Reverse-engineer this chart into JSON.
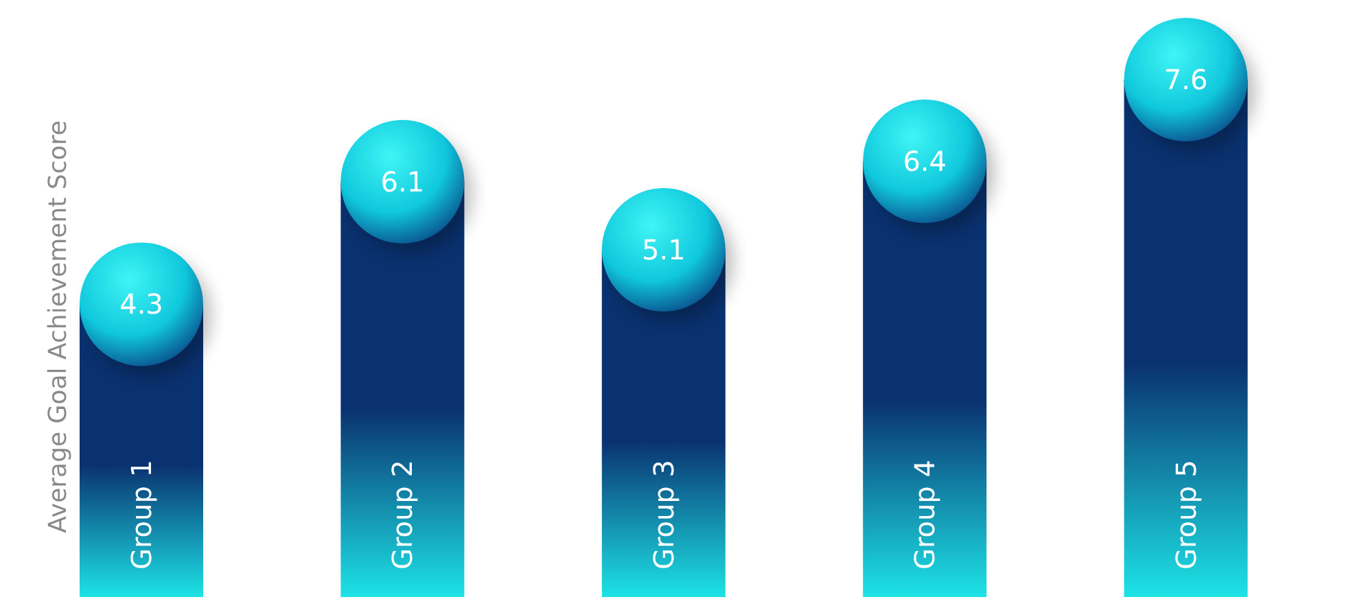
{
  "chart_data": {
    "type": "bar",
    "ylabel": "Average Goal Achievement Score",
    "categories": [
      "Group 1",
      "Group 2",
      "Group 3",
      "Group 4",
      "Group 5"
    ],
    "values": [
      4.3,
      6.1,
      5.1,
      6.4,
      7.6
    ],
    "color": "#0a3270",
    "data_labels": true,
    "grid": false,
    "legend": false
  }
}
